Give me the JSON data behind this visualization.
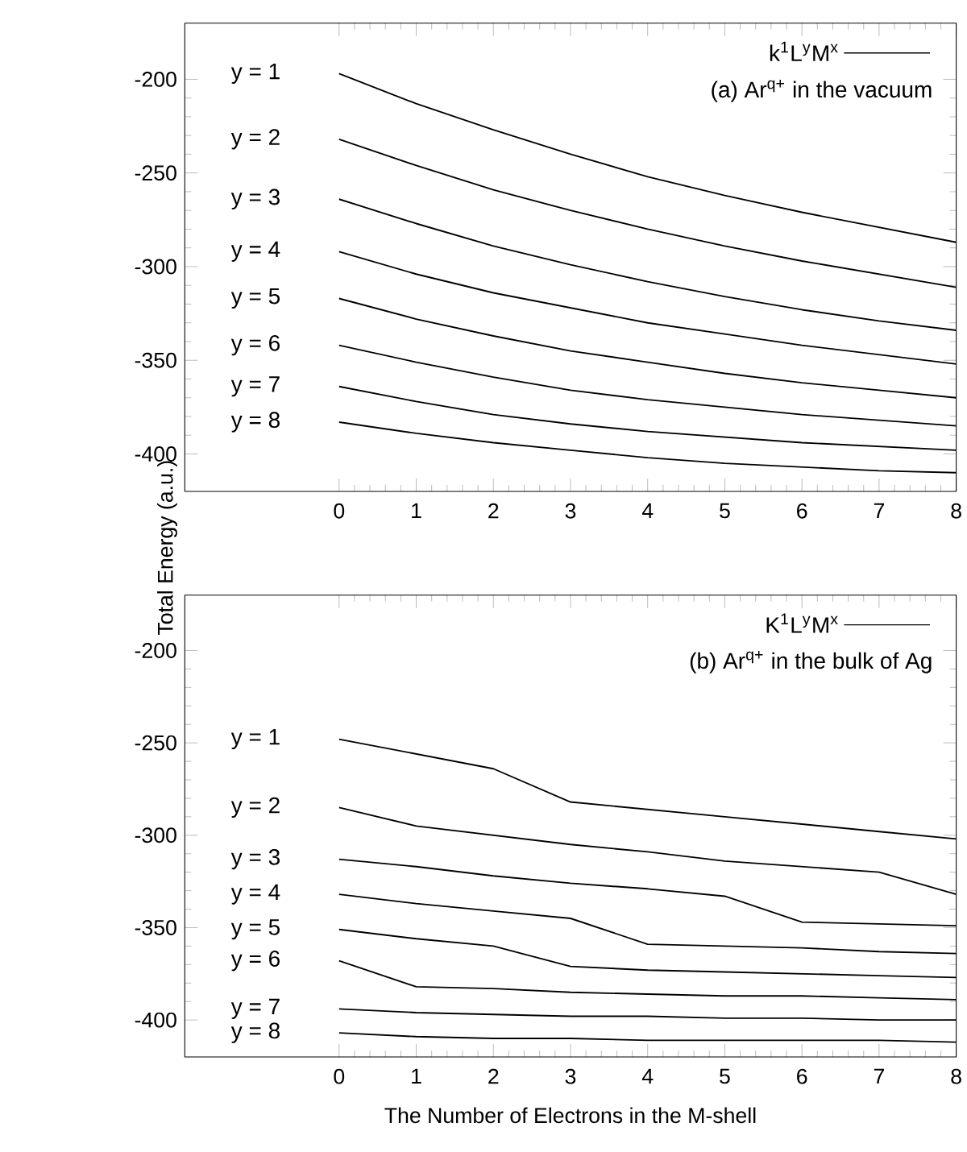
{
  "chart_data": [
    {
      "type": "line",
      "title": "(a) Ar$^{q+}$ in the vacuum",
      "ylabel": "Total Energy (a.u.)",
      "annotations": [
        "y = 1",
        "y = 2",
        "y = 3",
        "y = 4",
        "y = 5",
        "y = 6",
        "y = 7",
        "y = 8"
      ],
      "legend": "top right",
      "x": [
        0,
        1,
        2,
        3,
        4,
        5,
        6,
        7,
        8
      ],
      "xlim": [
        -2,
        8
      ],
      "xticks": [
        0,
        1,
        2,
        3,
        4,
        5,
        6,
        7,
        8
      ],
      "ylim": [
        -420,
        -170
      ],
      "yticks": [
        -400,
        -350,
        -300,
        -250,
        -200
      ],
      "marker": "none",
      "line_style": "solid",
      "series": [
        {
          "name": "k$^{1}$L$^{y}$M$^{x}$",
          "color": "#000000",
          "values": [
            -197,
            -213,
            -227,
            -240,
            -252,
            -262,
            -271,
            -279,
            -287
          ]
        },
        {
          "color": "#000000",
          "values": [
            -232,
            -246,
            -259,
            -270,
            -280,
            -289,
            -297,
            -304,
            -311
          ]
        },
        {
          "color": "#000000",
          "values": [
            -264,
            -277,
            -289,
            -299,
            -308,
            -316,
            -323,
            -329,
            -334
          ]
        },
        {
          "color": "#000000",
          "values": [
            -292,
            -304,
            -314,
            -322,
            -330,
            -336,
            -342,
            -347,
            -352
          ]
        },
        {
          "color": "#000000",
          "values": [
            -317,
            -328,
            -337,
            -345,
            -351,
            -357,
            -362,
            -366,
            -370
          ]
        },
        {
          "color": "#000000",
          "values": [
            -342,
            -351,
            -359,
            -366,
            -371,
            -375,
            -379,
            -382,
            -385
          ]
        },
        {
          "color": "#000000",
          "values": [
            -364,
            -372,
            -379,
            -384,
            -388,
            -391,
            -394,
            -396,
            -398
          ]
        },
        {
          "color": "#000000",
          "values": [
            -383,
            -389,
            -394,
            -398,
            -402,
            -405,
            -407,
            -409,
            -410
          ]
        }
      ]
    },
    {
      "type": "line",
      "title": "(b) Ar$^{q+}$ in the bulk of Ag",
      "xlabel": "The Number of Electrons in the M-shell",
      "annotations": [
        "y = 1",
        "y = 2",
        "y = 3",
        "y = 4",
        "y = 5",
        "y = 6",
        "y = 7",
        "y = 8"
      ],
      "legend": "top right",
      "x": [
        0,
        1,
        2,
        3,
        4,
        5,
        6,
        7,
        8
      ],
      "xlim": [
        -2,
        8
      ],
      "xticks": [
        0,
        1,
        2,
        3,
        4,
        5,
        6,
        7,
        8
      ],
      "ylim": [
        -420,
        -170
      ],
      "yticks": [
        -400,
        -350,
        -300,
        -250,
        -200
      ],
      "marker": "none",
      "line_style": "solid",
      "series": [
        {
          "name": "K$^{1}$L$^{y}$M$^{x}$",
          "color": "#000000",
          "values": [
            -248,
            -256,
            -264,
            -282,
            -286,
            -290,
            -294,
            -298,
            -302
          ]
        },
        {
          "color": "#000000",
          "values": [
            -285,
            -295,
            -300,
            -305,
            -309,
            -314,
            -317,
            -320,
            -332
          ]
        },
        {
          "color": "#000000",
          "values": [
            -313,
            -317,
            -322,
            -326,
            -329,
            -333,
            -347,
            -348,
            -349
          ]
        },
        {
          "color": "#000000",
          "values": [
            -332,
            -337,
            -341,
            -345,
            -359,
            -360,
            -361,
            -363,
            -364
          ]
        },
        {
          "color": "#000000",
          "values": [
            -351,
            -356,
            -360,
            -371,
            -373,
            -374,
            -375,
            -376,
            -377
          ]
        },
        {
          "color": "#000000",
          "values": [
            -368,
            -382,
            -383,
            -385,
            -386,
            -387,
            -387,
            -388,
            -389
          ]
        },
        {
          "color": "#000000",
          "values": [
            -394,
            -396,
            -397,
            -398,
            -398,
            -399,
            -399,
            -400,
            -400
          ]
        },
        {
          "color": "#000000",
          "values": [
            -407,
            -409,
            -410,
            -410,
            -411,
            -411,
            -411,
            -411,
            -412
          ]
        }
      ]
    }
  ]
}
